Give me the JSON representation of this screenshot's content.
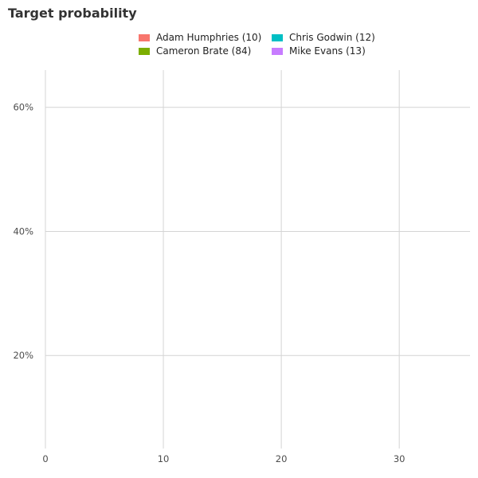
{
  "chart_data": {
    "type": "line",
    "title": "Target probability",
    "xlabel": "",
    "ylabel": "",
    "xlim": [
      0,
      36
    ],
    "ylim": [
      0.05,
      0.66
    ],
    "x_ticks": [
      0,
      10,
      20,
      30
    ],
    "x_tick_labels": [
      "0",
      "10",
      "20",
      "30"
    ],
    "y_ticks": [
      0.2,
      0.4,
      0.6
    ],
    "y_tick_labels": [
      "20%",
      "40%",
      "60%"
    ],
    "grid": true,
    "legend_position": "top",
    "series": [
      {
        "name": "Adam Humphries (10)",
        "color": "#F8766D",
        "values": []
      },
      {
        "name": "Chris Godwin (12)",
        "color": "#00BFC4",
        "values": []
      },
      {
        "name": "Cameron Brate (84)",
        "color": "#7CAE00",
        "values": []
      },
      {
        "name": "Mike Evans (13)",
        "color": "#C77CFF",
        "values": []
      }
    ]
  }
}
